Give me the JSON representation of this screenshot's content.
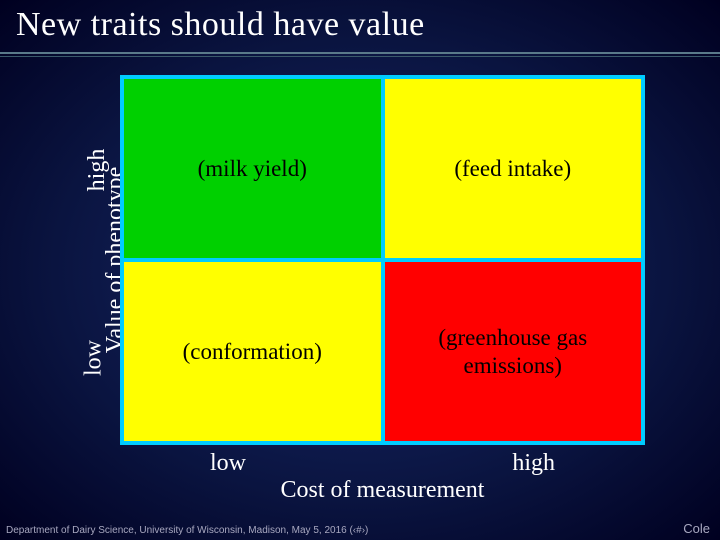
{
  "title": "New traits should have value",
  "yaxis": {
    "label": "Value of phenotype",
    "high": "high",
    "low": "low"
  },
  "xaxis": {
    "label": "Cost of measurement",
    "low": "low",
    "high": "high"
  },
  "matrix": {
    "border_color": "#00ccff",
    "gap": 4,
    "cells": [
      {
        "label": "(milk yield)",
        "bg": "#00d000",
        "fg": "#000000"
      },
      {
        "label": "(feed intake)",
        "bg": "#ffff00",
        "fg": "#000000"
      },
      {
        "label": "(conformation)",
        "bg": "#ffff00",
        "fg": "#000000"
      },
      {
        "label": "(greenhouse gas emissions)",
        "bg": "#ff0000",
        "fg": "#000000"
      }
    ]
  },
  "footer": {
    "left": "Department of Dairy Science, University of Wisconsin, Madison, May 5, 2016 (‹#›)",
    "right": "Cole"
  },
  "style": {
    "title_color": "#ffffff",
    "title_fontsize": 34,
    "axis_fontsize": 24,
    "cell_fontsize": 23,
    "bg_gradient_inner": "#1a2a6c",
    "bg_gradient_mid": "#0a1440",
    "bg_gradient_outer": "#000020",
    "rule_color_top": "#5a7a8a",
    "rule_color_bottom": "#3a5a6a"
  }
}
